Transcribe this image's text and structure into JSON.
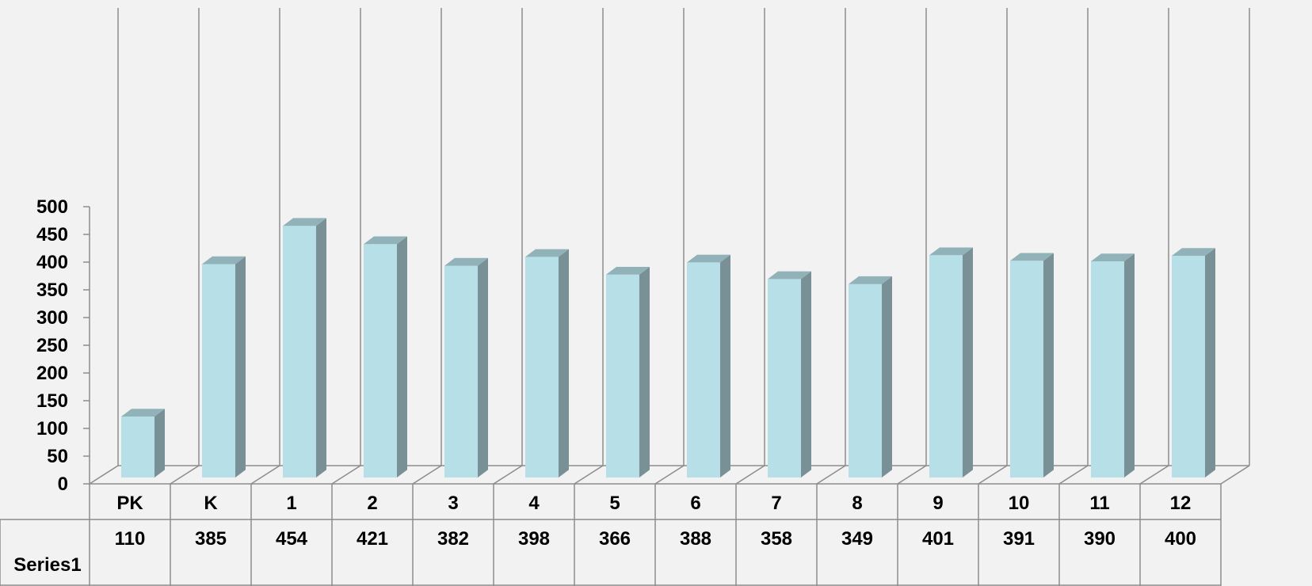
{
  "chart_data": {
    "type": "bar",
    "categories": [
      "PK",
      "K",
      "1",
      "2",
      "3",
      "4",
      "5",
      "6",
      "7",
      "8",
      "9",
      "10",
      "11",
      "12"
    ],
    "series": [
      {
        "name": "Series1",
        "values": [
          110,
          385,
          454,
          421,
          382,
          398,
          366,
          388,
          358,
          349,
          401,
          391,
          390,
          400
        ]
      }
    ],
    "y_ticks": [
      "0",
      "50",
      "100",
      "150",
      "200",
      "250",
      "300",
      "350",
      "400",
      "450",
      "500"
    ],
    "ylim": [
      0,
      500
    ],
    "grid": "vertical",
    "legend": "data-table-below",
    "colors": {
      "bar_front": "#b7dfe8",
      "bar_side": "#789096",
      "bar_top": "#91b2b9",
      "grid": "#8c8c8c",
      "background": "#f2f2f2"
    }
  }
}
